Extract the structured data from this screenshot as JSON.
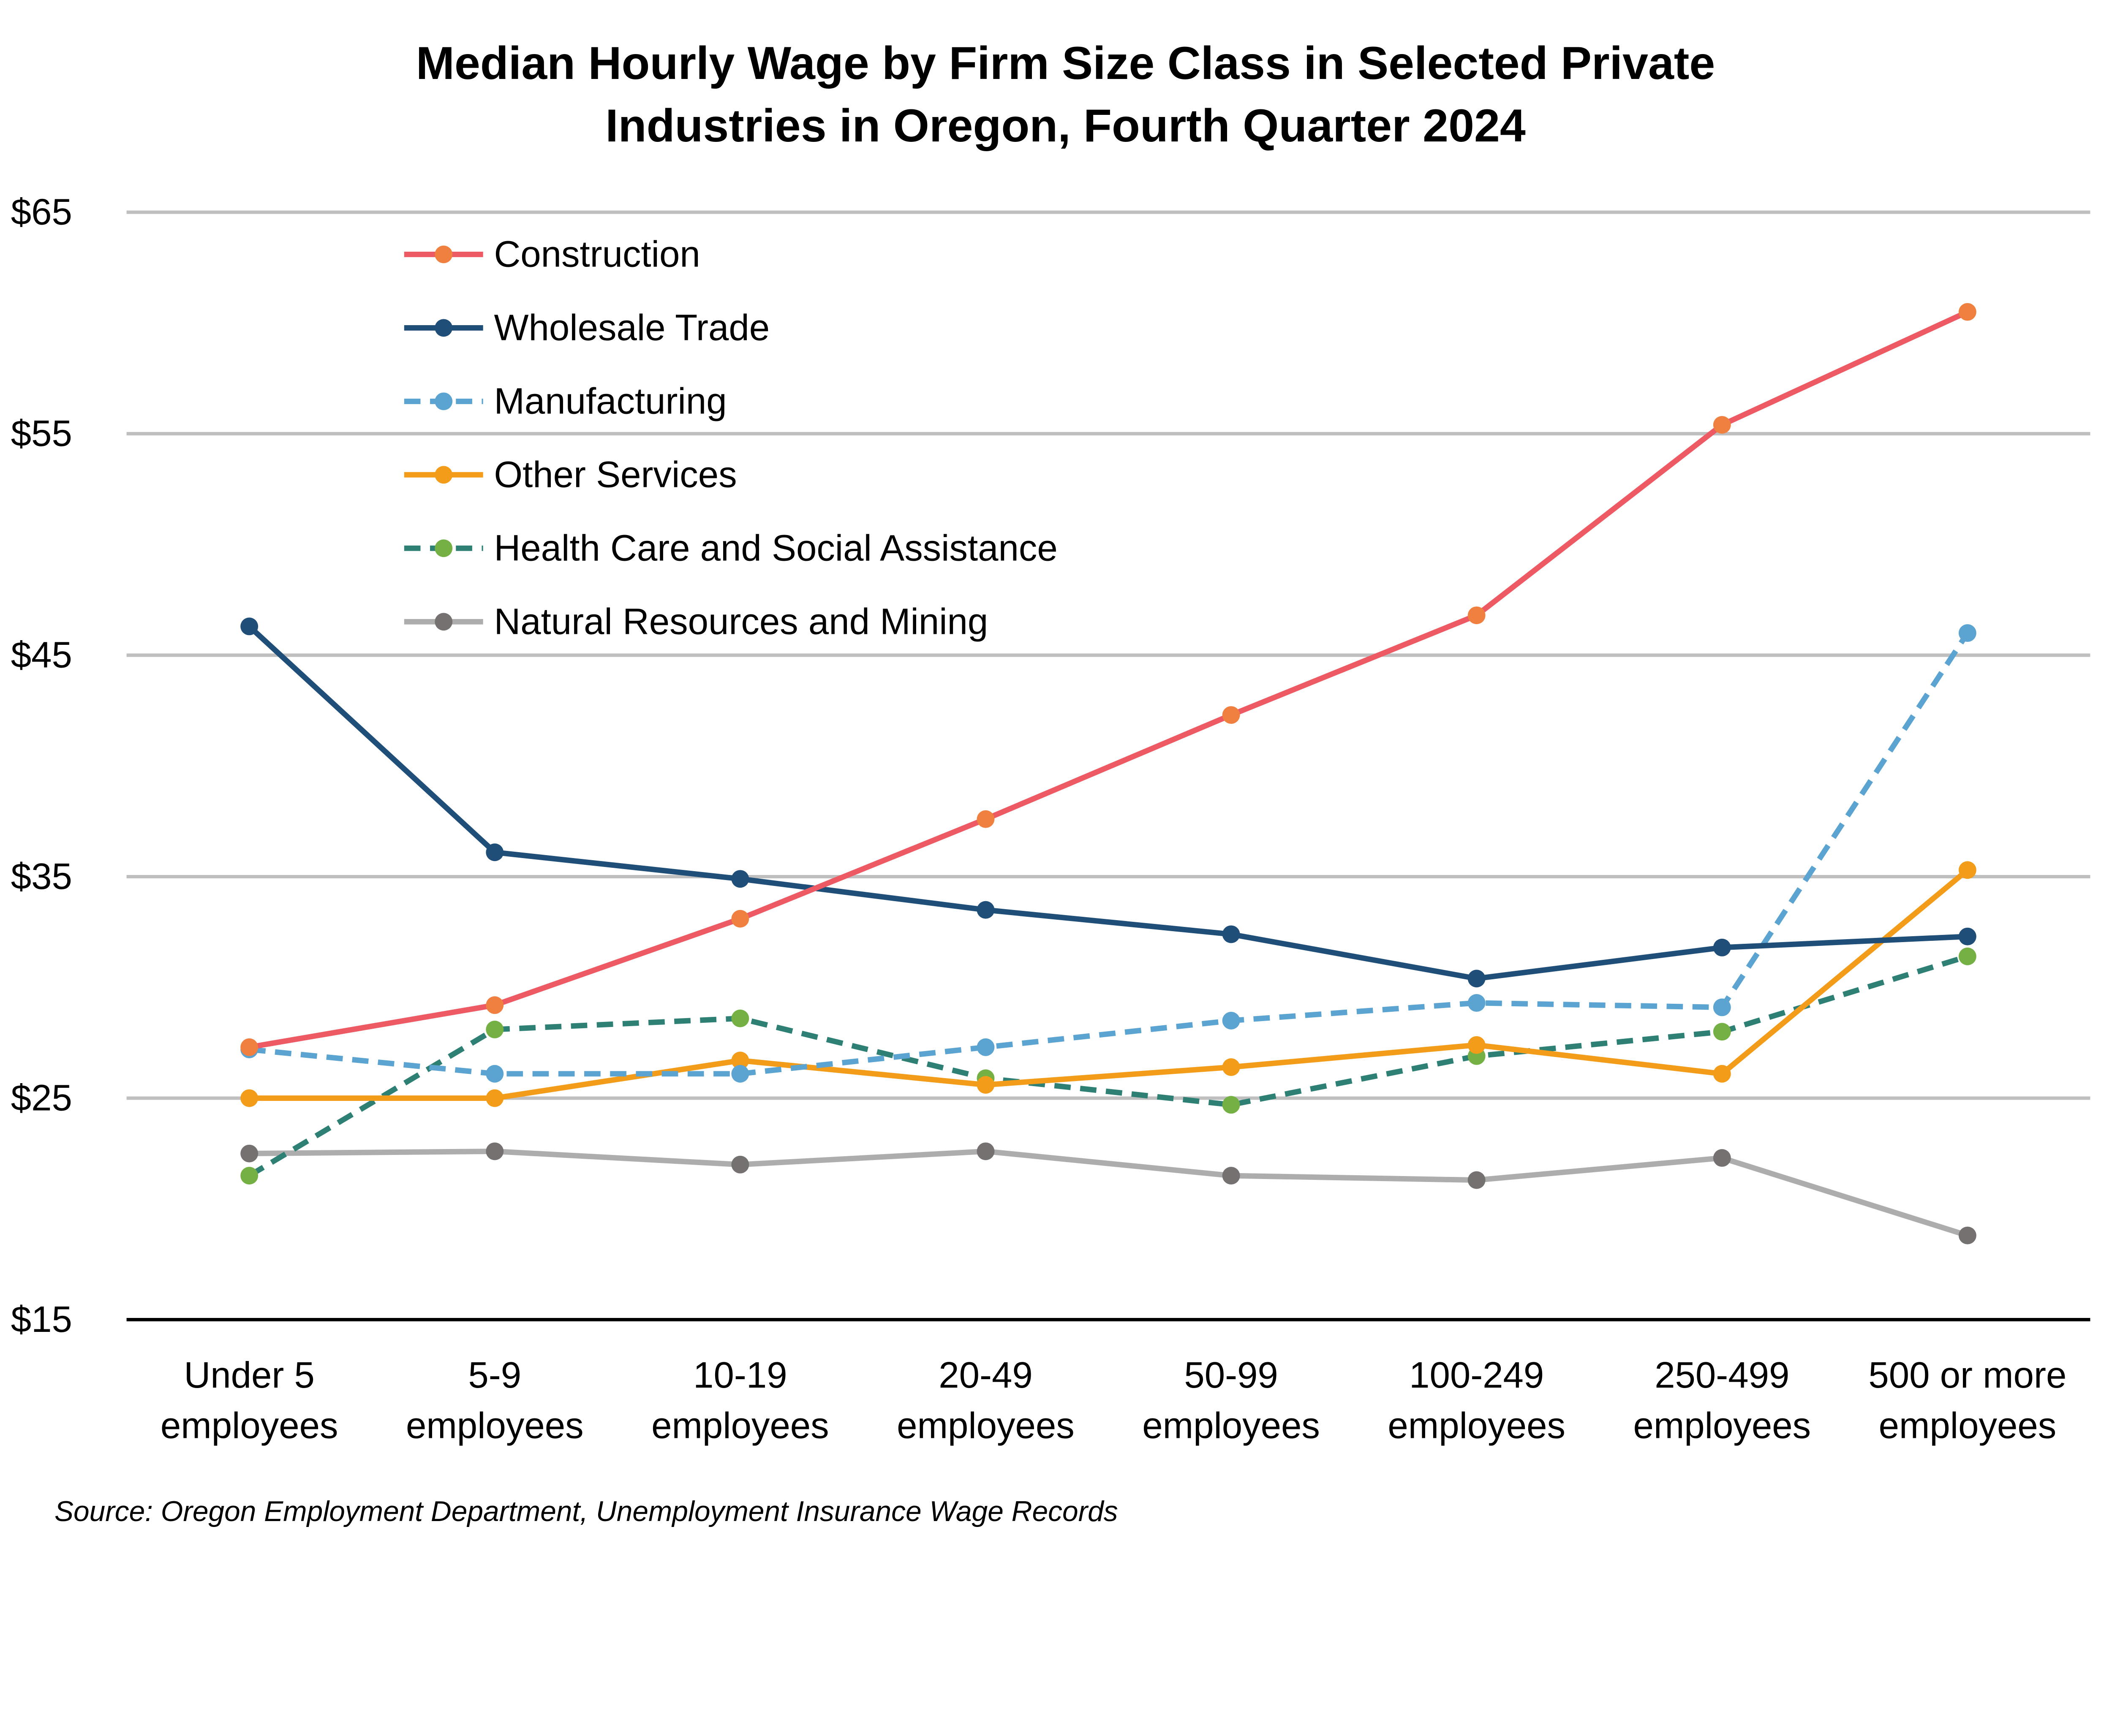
{
  "chart_data": {
    "type": "line",
    "title_lines": [
      "Median Hourly Wage by Firm Size Class in Selected Private",
      "Industries in Oregon, Fourth Quarter 2024"
    ],
    "categories": [
      [
        "Under 5",
        "employees"
      ],
      [
        "5-9",
        "employees"
      ],
      [
        "10-19",
        "employees"
      ],
      [
        "20-49",
        "employees"
      ],
      [
        "50-99",
        "employees"
      ],
      [
        "100-249",
        "employees"
      ],
      [
        "250-499",
        "employees"
      ],
      [
        "500 or more",
        "employees"
      ]
    ],
    "ylim": [
      15,
      65
    ],
    "yticks": [
      15,
      25,
      35,
      45,
      55,
      65
    ],
    "ytick_labels": [
      "$15",
      "$25",
      "$35",
      "$45",
      "$55",
      "$65"
    ],
    "grid": "horizontal",
    "legend_placement": "top-left",
    "series": [
      {
        "name": "Construction",
        "line_color": "#EE5A64",
        "marker_color": "#F08040",
        "dashed": false,
        "values": [
          27.3,
          29.2,
          33.1,
          37.6,
          42.3,
          46.8,
          55.4,
          60.5
        ]
      },
      {
        "name": "Wholesale Trade",
        "line_color": "#1F4E79",
        "marker_color": "#1F4E79",
        "dashed": false,
        "values": [
          46.3,
          36.1,
          34.9,
          33.5,
          32.4,
          30.4,
          31.8,
          32.3
        ]
      },
      {
        "name": "Manufacturing",
        "line_color": "#5BA3D0",
        "marker_color": "#5BA3D0",
        "dashed": true,
        "values": [
          27.2,
          26.1,
          26.1,
          27.3,
          28.5,
          29.3,
          29.1,
          46.0
        ]
      },
      {
        "name": "Other Services",
        "line_color": "#F39C1A",
        "marker_color": "#F39C1A",
        "dashed": false,
        "values": [
          25.0,
          25.0,
          26.7,
          25.6,
          26.4,
          27.4,
          26.1,
          35.3
        ]
      },
      {
        "name": "Health Care and Social Assistance",
        "line_color": "#2E8075",
        "marker_color": "#74B043",
        "dashed": true,
        "values": [
          21.5,
          28.1,
          28.6,
          25.9,
          24.7,
          26.9,
          28.0,
          31.4
        ]
      },
      {
        "name": "Natural Resources and Mining",
        "line_color": "#ADADAD",
        "marker_color": "#767171",
        "dashed": false,
        "values": [
          22.5,
          22.6,
          22.0,
          22.6,
          21.5,
          21.3,
          22.3,
          18.8
        ]
      }
    ],
    "source": "Source: Oregon Employment Department, Unemployment Insurance Wage Records"
  }
}
